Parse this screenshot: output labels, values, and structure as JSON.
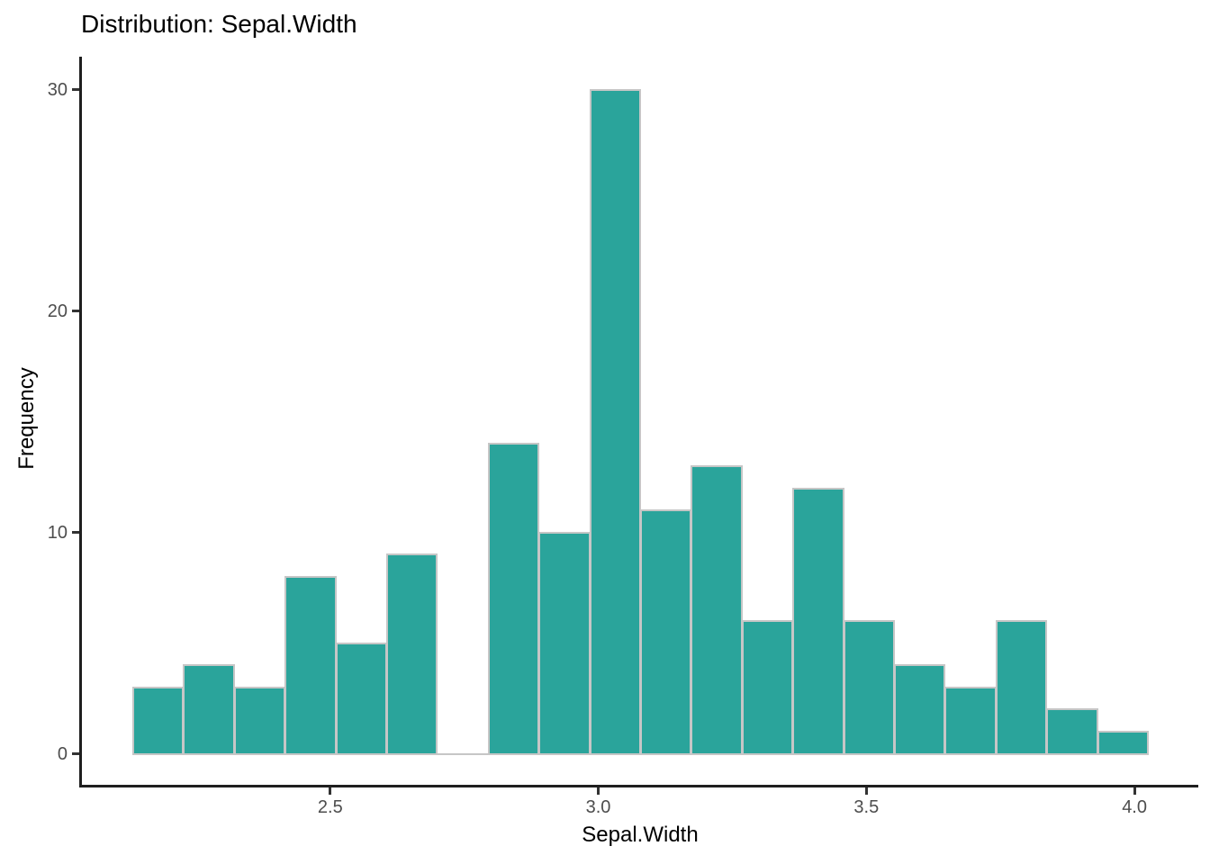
{
  "chart_data": {
    "type": "bar",
    "subtype": "histogram",
    "title": "Distribution: Sepal.Width",
    "xlabel": "Sepal.Width",
    "ylabel": "Frequency",
    "bin_start": 2.131,
    "bin_width": 0.0947,
    "counts": [
      3,
      4,
      3,
      8,
      5,
      9,
      0,
      14,
      10,
      30,
      11,
      13,
      6,
      12,
      6,
      4,
      3,
      6,
      2,
      1
    ],
    "total_n": 150,
    "x_ticks": [
      {
        "v": 2.5,
        "label": "2.5"
      },
      {
        "v": 3.0,
        "label": "3.0"
      },
      {
        "v": 3.5,
        "label": "3.5"
      },
      {
        "v": 4.0,
        "label": "4.0"
      }
    ],
    "y_ticks": [
      {
        "v": 0,
        "label": "0"
      },
      {
        "v": 10,
        "label": "10"
      },
      {
        "v": 20,
        "label": "20"
      },
      {
        "v": 30,
        "label": "30"
      }
    ],
    "xlim": [
      2.037,
      4.119
    ],
    "ylim": [
      -1.4,
      31.5
    ],
    "grid": "off",
    "legend": "none",
    "colors": {
      "bar_fill": "#2aa49b",
      "bar_stroke": "#c6c6c6",
      "axis_line": "#1f1f1f",
      "tick_mark": "#333333",
      "tick_label": "#4d4d4d",
      "title_text": "#000000",
      "axis_title_text": "#000000",
      "background": "#ffffff"
    }
  }
}
